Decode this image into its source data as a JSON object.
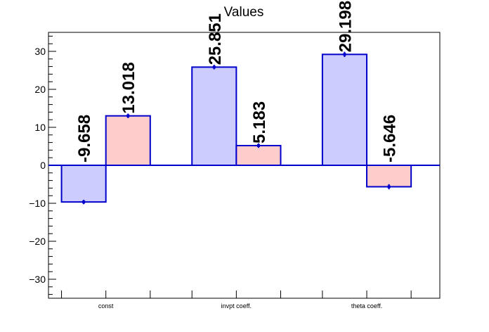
{
  "chart_data": {
    "type": "bar",
    "title": "Values",
    "xlabel": "",
    "ylabel": "",
    "categories": [
      "const",
      "invpt coeff.",
      "theta coeff."
    ],
    "series": [
      {
        "values": [
          -9.658,
          25.851,
          29.198
        ],
        "labels": [
          "-9.658",
          "25.851",
          "29.198"
        ],
        "color": "#ccccff"
      },
      {
        "values": [
          13.018,
          5.183,
          -5.646
        ],
        "labels": [
          "13.018",
          "5.183",
          "-5.646"
        ],
        "color": "#ffcccc"
      }
    ],
    "errors": [
      0.4,
      0.4,
      0.5
    ],
    "ylim": [
      -35,
      35
    ],
    "yticks": [
      -30,
      -20,
      -10,
      0,
      10,
      20,
      30
    ],
    "ytick_labels": [
      "−30",
      "−20",
      "−10",
      "0",
      "10",
      "20",
      "30"
    ],
    "grid": false,
    "outline_color": "#0000cc",
    "axis_color": "#000000"
  }
}
